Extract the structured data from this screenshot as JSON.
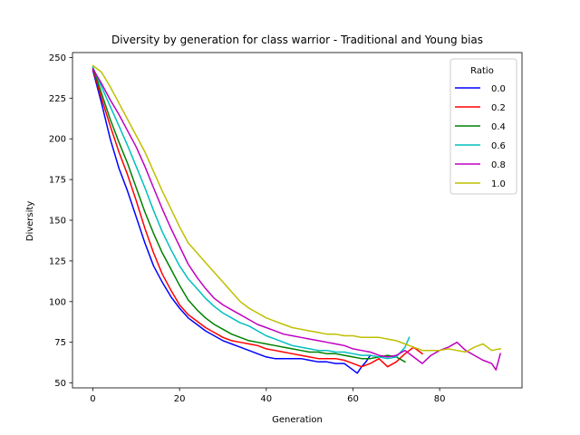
{
  "chart_data": {
    "type": "line",
    "title": "Diversity by generation for class warrior - Traditional and Young bias",
    "xlabel": "Generation",
    "ylabel": "Diversity",
    "xlim": [
      -4.7,
      99
    ],
    "ylim": [
      47,
      253
    ],
    "xticks": [
      0,
      20,
      40,
      60,
      80
    ],
    "yticks": [
      50,
      75,
      100,
      125,
      150,
      175,
      200,
      225,
      250
    ],
    "grid": false,
    "legend": {
      "title": "Ratio",
      "placement": "top-right"
    },
    "series": [
      {
        "name": "0.0",
        "color": "#0000ff",
        "x": [
          0,
          2,
          4,
          6,
          8,
          10,
          12,
          14,
          16,
          18,
          20,
          22,
          24,
          26,
          28,
          30,
          32,
          34,
          36,
          38,
          40,
          42,
          44,
          46,
          48,
          50,
          52,
          54,
          56,
          58,
          60,
          61,
          62,
          63,
          64
        ],
        "y": [
          242,
          222,
          200,
          182,
          168,
          152,
          136,
          122,
          112,
          103,
          96,
          90,
          86,
          82,
          79,
          76,
          74,
          72,
          70,
          68,
          66,
          65,
          65,
          65,
          65,
          64,
          63,
          63,
          62,
          62,
          58,
          56,
          60,
          63,
          67
        ]
      },
      {
        "name": "0.2",
        "color": "#ff0000",
        "x": [
          0,
          2,
          4,
          6,
          8,
          10,
          12,
          14,
          16,
          18,
          20,
          22,
          24,
          26,
          28,
          30,
          32,
          34,
          36,
          38,
          40,
          42,
          44,
          46,
          48,
          50,
          52,
          54,
          56,
          58,
          60,
          62,
          64,
          66,
          68,
          70,
          72,
          74,
          76
        ],
        "y": [
          243,
          225,
          208,
          192,
          178,
          162,
          145,
          130,
          117,
          107,
          98,
          92,
          88,
          84,
          81,
          78,
          76,
          75,
          74,
          73,
          71,
          70,
          69,
          68,
          67,
          66,
          65,
          65,
          65,
          64,
          62,
          60,
          62,
          65,
          60,
          63,
          68,
          72,
          68
        ]
      },
      {
        "name": "0.4",
        "color": "#008000",
        "x": [
          0,
          2,
          4,
          6,
          8,
          10,
          12,
          14,
          16,
          18,
          20,
          22,
          24,
          26,
          28,
          30,
          32,
          34,
          36,
          38,
          40,
          42,
          44,
          46,
          48,
          50,
          52,
          54,
          56,
          58,
          60,
          62,
          64,
          66,
          68,
          70,
          72
        ],
        "y": [
          244,
          228,
          212,
          198,
          185,
          170,
          155,
          142,
          130,
          120,
          110,
          101,
          95,
          90,
          86,
          83,
          80,
          78,
          76,
          75,
          74,
          73,
          72,
          71,
          70,
          69,
          69,
          68,
          68,
          67,
          66,
          65,
          65,
          66,
          67,
          66,
          63
        ]
      },
      {
        "name": "0.6",
        "color": "#00bfbf",
        "x": [
          0,
          2,
          4,
          6,
          8,
          10,
          12,
          14,
          16,
          18,
          20,
          22,
          24,
          26,
          28,
          30,
          32,
          34,
          36,
          38,
          40,
          42,
          44,
          46,
          48,
          50,
          52,
          54,
          56,
          58,
          60,
          62,
          64,
          66,
          68,
          70,
          72,
          73
        ],
        "y": [
          244,
          232,
          220,
          208,
          196,
          183,
          170,
          156,
          143,
          132,
          122,
          114,
          108,
          102,
          97,
          93,
          90,
          87,
          85,
          82,
          79,
          77,
          75,
          73,
          72,
          71,
          70,
          70,
          69,
          69,
          68,
          67,
          67,
          66,
          65,
          66,
          72,
          78
        ]
      },
      {
        "name": "0.8",
        "color": "#bf00bf",
        "x": [
          0,
          2,
          4,
          6,
          8,
          10,
          12,
          14,
          16,
          18,
          20,
          22,
          24,
          26,
          28,
          30,
          32,
          34,
          36,
          38,
          40,
          42,
          44,
          46,
          48,
          50,
          52,
          54,
          56,
          58,
          60,
          62,
          64,
          66,
          68,
          70,
          72,
          74,
          76,
          78,
          80,
          82,
          84,
          86,
          88,
          90,
          92,
          93,
          94
        ],
        "y": [
          243,
          234,
          224,
          215,
          205,
          195,
          183,
          170,
          157,
          145,
          134,
          123,
          115,
          108,
          102,
          98,
          95,
          92,
          89,
          86,
          84,
          82,
          80,
          79,
          78,
          77,
          76,
          75,
          74,
          73,
          71,
          70,
          69,
          67,
          66,
          67,
          70,
          66,
          62,
          67,
          70,
          72,
          75,
          70,
          67,
          64,
          62,
          58,
          68
        ]
      },
      {
        "name": "1.0",
        "color": "#bfbf00",
        "x": [
          0,
          2,
          4,
          6,
          8,
          10,
          12,
          14,
          16,
          18,
          20,
          22,
          24,
          26,
          28,
          30,
          32,
          34,
          36,
          38,
          40,
          42,
          44,
          46,
          48,
          50,
          52,
          54,
          56,
          58,
          60,
          62,
          64,
          66,
          68,
          70,
          72,
          74,
          76,
          78,
          80,
          82,
          84,
          86,
          88,
          90,
          92,
          94
        ],
        "y": [
          245,
          241,
          232,
          222,
          212,
          202,
          192,
          180,
          168,
          157,
          146,
          136,
          130,
          124,
          118,
          112,
          106,
          100,
          96,
          93,
          90,
          88,
          86,
          84,
          83,
          82,
          81,
          80,
          80,
          79,
          79,
          78,
          78,
          78,
          77,
          76,
          74,
          72,
          70,
          70,
          70,
          71,
          70,
          69,
          72,
          74,
          70,
          71
        ]
      }
    ]
  }
}
